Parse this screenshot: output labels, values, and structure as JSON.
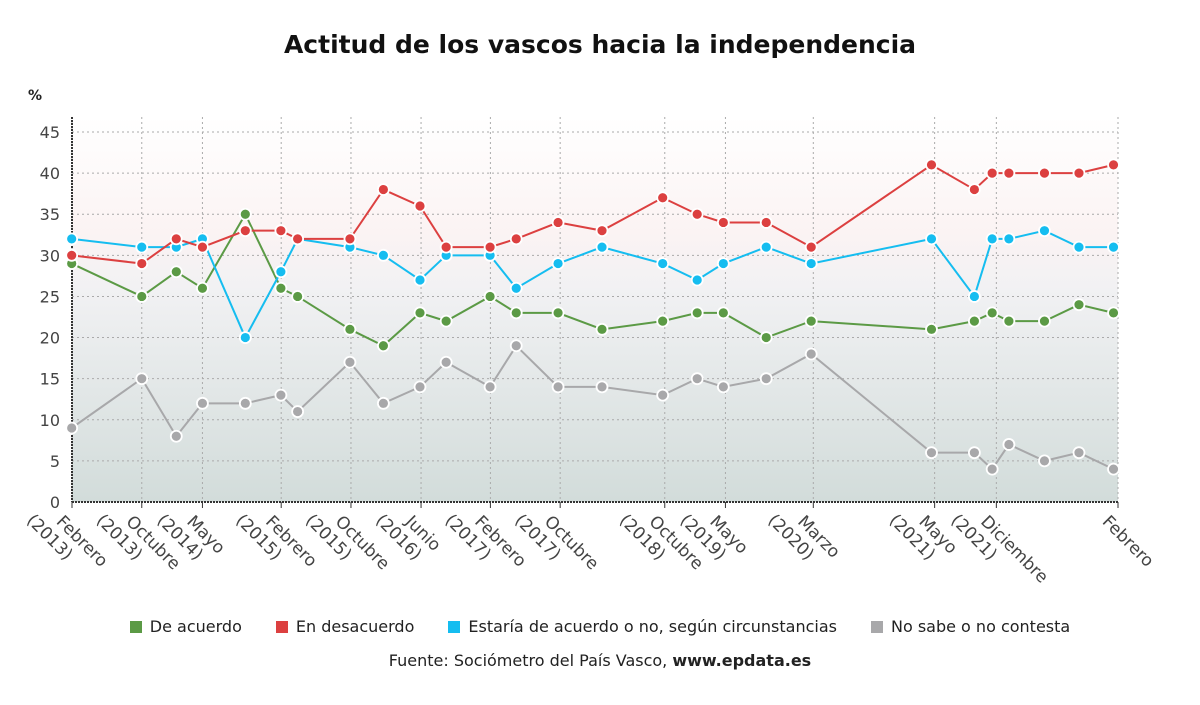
{
  "chart_data": {
    "type": "line",
    "title": "Actitud de los vascos hacia la independencia",
    "ylabel": "%",
    "xlabel": "",
    "ylim": [
      0,
      45
    ],
    "yticks": [
      0,
      5,
      10,
      15,
      20,
      25,
      30,
      35,
      40,
      45
    ],
    "xlim": [
      2013.083,
      2023.083
    ],
    "xticks": [
      {
        "x": 2013.083,
        "l1": "Febrero",
        "l2": "(2013)"
      },
      {
        "x": 2013.75,
        "l1": "Octubre",
        "l2": "(2013)"
      },
      {
        "x": 2014.33,
        "l1": "Mayo",
        "l2": "(2014)"
      },
      {
        "x": 2015.083,
        "l1": "Febrero",
        "l2": "(2015)"
      },
      {
        "x": 2015.75,
        "l1": "Octubre",
        "l2": "(2015)"
      },
      {
        "x": 2016.42,
        "l1": "Junio",
        "l2": "(2016)"
      },
      {
        "x": 2017.083,
        "l1": "Febrero",
        "l2": "(2017)"
      },
      {
        "x": 2017.75,
        "l1": "Octubre",
        "l2": "(2017)"
      },
      {
        "x": 2018.75,
        "l1": "Octubre",
        "l2": "(2018)"
      },
      {
        "x": 2019.33,
        "l1": "Mayo",
        "l2": "(2019)"
      },
      {
        "x": 2020.17,
        "l1": "Marzo",
        "l2": "(2020)"
      },
      {
        "x": 2021.33,
        "l1": "Mayo",
        "l2": "(2021)"
      },
      {
        "x": 2021.92,
        "l1": "Diciembre",
        "l2": "(2021)"
      },
      {
        "x": 2023.083,
        "l1": "Febrero",
        "l2": ""
      }
    ],
    "x": [
      2013.08,
      2013.75,
      2014.08,
      2014.33,
      2014.74,
      2015.08,
      2015.24,
      2015.74,
      2016.06,
      2016.41,
      2016.66,
      2017.08,
      2017.33,
      2017.73,
      2018.15,
      2018.73,
      2019.06,
      2019.31,
      2019.72,
      2020.15,
      2021.3,
      2021.71,
      2021.88,
      2022.04,
      2022.38,
      2022.71,
      2023.04
    ],
    "series": [
      {
        "name": "De acuerdo",
        "color": "#5b9a45",
        "values": [
          29,
          25,
          28,
          26,
          35,
          26,
          25,
          21,
          19,
          23,
          22,
          25,
          23,
          23,
          21,
          22,
          23,
          23,
          20,
          22,
          21,
          22,
          23,
          22,
          22,
          24,
          23
        ]
      },
      {
        "name": "En desacuerdo",
        "color": "#dc4040",
        "values": [
          30,
          29,
          32,
          31,
          33,
          33,
          32,
          32,
          38,
          36,
          31,
          31,
          32,
          34,
          33,
          37,
          35,
          34,
          34,
          31,
          41,
          38,
          40,
          40,
          40,
          40,
          41
        ]
      },
      {
        "name": "Estaría de acuerdo o no, según circunstancias",
        "color": "#15bdf0",
        "values": [
          32,
          31,
          31,
          32,
          20,
          28,
          32,
          31,
          30,
          27,
          30,
          30,
          26,
          29,
          31,
          29,
          27,
          29,
          31,
          29,
          32,
          25,
          32,
          32,
          33,
          31,
          31
        ]
      },
      {
        "name": "No sabe o no contesta",
        "color": "#a8a8aa",
        "values": [
          9,
          15,
          8,
          12,
          12,
          13,
          11,
          17,
          12,
          14,
          17,
          14,
          19,
          14,
          14,
          13,
          15,
          14,
          15,
          18,
          6,
          6,
          4,
          7,
          5,
          6,
          4
        ]
      }
    ],
    "legend": "bottom",
    "grid": true
  },
  "source": {
    "prefix": "Fuente: Sociómetro del País Vasco, ",
    "site": "www.epdata.es"
  }
}
